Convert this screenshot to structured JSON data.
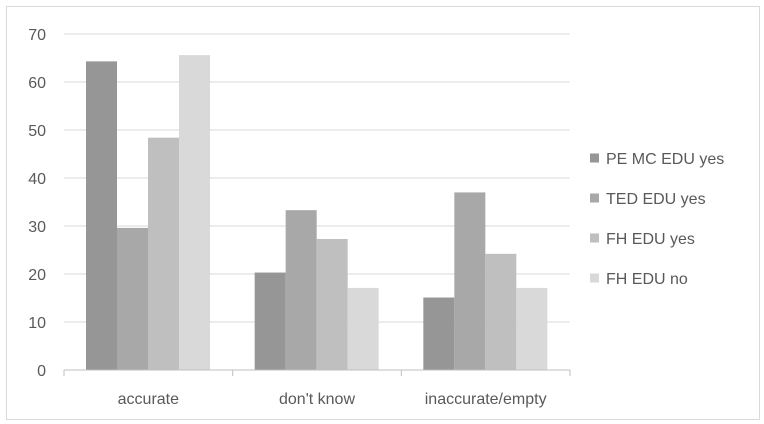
{
  "chart_data": {
    "type": "bar",
    "categories": [
      "accurate",
      "don't know",
      "inaccurate/empty"
    ],
    "series": [
      {
        "name": "PE MC EDU yes",
        "values": [
          64.3,
          20.3,
          15.1
        ],
        "color": "#969696"
      },
      {
        "name": "TED EDU yes",
        "values": [
          29.6,
          33.3,
          37.0
        ],
        "color": "#a8a8a8"
      },
      {
        "name": "FH EDU yes",
        "values": [
          48.4,
          27.3,
          24.2
        ],
        "color": "#bfbfbf"
      },
      {
        "name": "FH EDU no",
        "values": [
          65.6,
          17.1,
          17.1
        ],
        "color": "#d9d9d9"
      }
    ],
    "title": "",
    "xlabel": "",
    "ylabel": "",
    "ylim": [
      0,
      70
    ],
    "yticks": [
      0,
      10,
      20,
      30,
      40,
      50,
      60,
      70
    ],
    "grid": true,
    "legend_position": "right",
    "gridline_color": "#d9d9d9",
    "axis_color": "#bfbfbf"
  }
}
